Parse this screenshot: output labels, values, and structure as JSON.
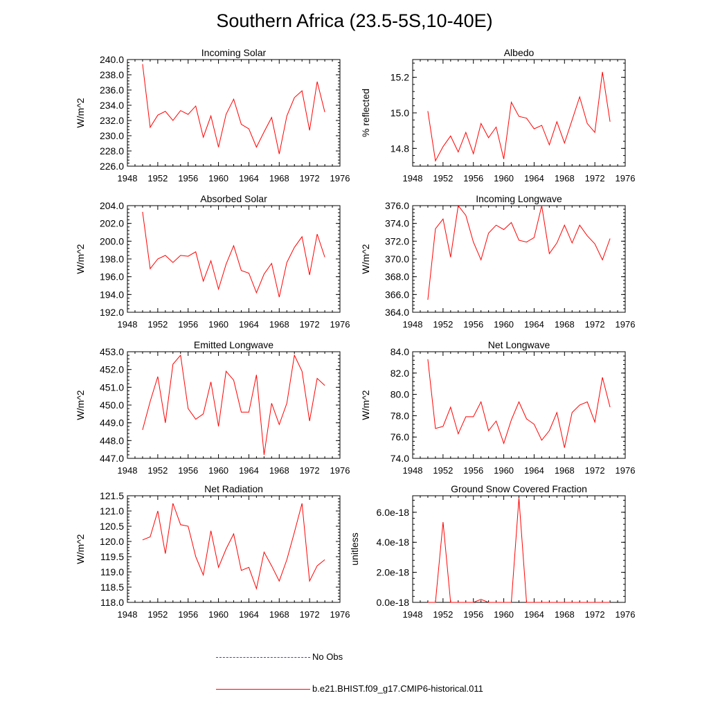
{
  "title": "Southern Africa (23.5-5S,10-40E)",
  "chart_data": [
    {
      "type": "line",
      "title": "Incoming Solar",
      "ylabel": "W/m^2",
      "xlim": [
        1948,
        1976
      ],
      "xticks": [
        1948,
        1952,
        1956,
        1960,
        1964,
        1968,
        1972,
        1976
      ],
      "ylim": [
        226.0,
        240.0
      ],
      "yticks": [
        226.0,
        228.0,
        230.0,
        232.0,
        234.0,
        236.0,
        238.0,
        240.0
      ],
      "ytick_labels": [
        "226.0",
        "228.0",
        "230.0",
        "232.0",
        "234.0",
        "236.0",
        "238.0",
        "240.0"
      ],
      "x": [
        1950,
        1951,
        1952,
        1953,
        1954,
        1955,
        1956,
        1957,
        1958,
        1959,
        1960,
        1961,
        1962,
        1963,
        1964,
        1965,
        1966,
        1967,
        1968,
        1969,
        1970,
        1971,
        1972,
        1973,
        1974
      ],
      "series": [
        {
          "values": [
            239.4,
            231.1,
            232.7,
            233.2,
            232.0,
            233.3,
            232.8,
            233.9,
            229.8,
            232.6,
            228.5,
            232.8,
            234.8,
            231.5,
            230.9,
            228.5,
            230.5,
            232.4,
            227.6,
            232.6,
            235.0,
            235.9,
            230.7,
            237.1,
            233.1
          ]
        }
      ]
    },
    {
      "type": "line",
      "title": "Albedo",
      "ylabel": "% reflected",
      "xlim": [
        1948,
        1976
      ],
      "xticks": [
        1948,
        1952,
        1956,
        1960,
        1964,
        1968,
        1972,
        1976
      ],
      "ylim": [
        14.7,
        15.3
      ],
      "yticks": [
        14.8,
        15.0,
        15.2
      ],
      "ytick_labels": [
        "14.8",
        "15.0",
        "15.2"
      ],
      "x": [
        1950,
        1951,
        1952,
        1953,
        1954,
        1955,
        1956,
        1957,
        1958,
        1959,
        1960,
        1961,
        1962,
        1963,
        1964,
        1965,
        1966,
        1967,
        1968,
        1969,
        1970,
        1971,
        1972,
        1973,
        1974
      ],
      "series": [
        {
          "values": [
            15.01,
            14.73,
            14.81,
            14.87,
            14.78,
            14.89,
            14.77,
            14.94,
            14.86,
            14.92,
            14.74,
            15.06,
            14.98,
            14.97,
            14.91,
            14.93,
            14.82,
            14.95,
            14.83,
            14.96,
            15.09,
            14.94,
            14.89,
            15.23,
            14.95
          ]
        }
      ]
    },
    {
      "type": "line",
      "title": "Absorbed Solar",
      "ylabel": "W/m^2",
      "xlim": [
        1948,
        1976
      ],
      "xticks": [
        1948,
        1952,
        1956,
        1960,
        1964,
        1968,
        1972,
        1976
      ],
      "ylim": [
        192.0,
        204.0
      ],
      "yticks": [
        192.0,
        194.0,
        196.0,
        198.0,
        200.0,
        202.0,
        204.0
      ],
      "ytick_labels": [
        "192.0",
        "194.0",
        "196.0",
        "198.0",
        "200.0",
        "202.0",
        "204.0"
      ],
      "x": [
        1950,
        1951,
        1952,
        1953,
        1954,
        1955,
        1956,
        1957,
        1958,
        1959,
        1960,
        1961,
        1962,
        1963,
        1964,
        1965,
        1966,
        1967,
        1968,
        1969,
        1970,
        1971,
        1972,
        1973,
        1974
      ],
      "series": [
        {
          "values": [
            203.3,
            196.9,
            198.0,
            198.4,
            197.6,
            198.4,
            198.3,
            198.8,
            195.5,
            197.8,
            194.6,
            197.4,
            199.5,
            196.7,
            196.4,
            194.2,
            196.3,
            197.5,
            193.7,
            197.6,
            199.3,
            200.5,
            196.2,
            200.8,
            198.2
          ]
        }
      ]
    },
    {
      "type": "line",
      "title": "Incoming Longwave",
      "ylabel": "W/m^2",
      "xlim": [
        1948,
        1976
      ],
      "xticks": [
        1948,
        1952,
        1956,
        1960,
        1964,
        1968,
        1972,
        1976
      ],
      "ylim": [
        364.0,
        376.0
      ],
      "yticks": [
        364.0,
        366.0,
        368.0,
        370.0,
        372.0,
        374.0,
        376.0
      ],
      "ytick_labels": [
        "364.0",
        "366.0",
        "368.0",
        "370.0",
        "372.0",
        "374.0",
        "376.0"
      ],
      "x": [
        1950,
        1951,
        1952,
        1953,
        1954,
        1955,
        1956,
        1957,
        1958,
        1959,
        1960,
        1961,
        1962,
        1963,
        1964,
        1965,
        1966,
        1967,
        1968,
        1969,
        1970,
        1971,
        1972,
        1973,
        1974
      ],
      "series": [
        {
          "values": [
            365.4,
            373.4,
            374.5,
            370.2,
            376.0,
            374.9,
            371.9,
            369.9,
            372.9,
            373.8,
            373.3,
            374.1,
            372.1,
            371.9,
            372.4,
            376.0,
            370.6,
            371.8,
            373.8,
            371.8,
            373.8,
            372.6,
            371.7,
            369.9,
            372.3
          ]
        }
      ]
    },
    {
      "type": "line",
      "title": "Emitted Longwave",
      "ylabel": "W/m^2",
      "xlim": [
        1948,
        1976
      ],
      "xticks": [
        1948,
        1952,
        1956,
        1960,
        1964,
        1968,
        1972,
        1976
      ],
      "ylim": [
        447.0,
        453.0
      ],
      "yticks": [
        447.0,
        448.0,
        449.0,
        450.0,
        451.0,
        452.0,
        453.0
      ],
      "ytick_labels": [
        "447.0",
        "448.0",
        "449.0",
        "450.0",
        "451.0",
        "452.0",
        "453.0"
      ],
      "x": [
        1950,
        1951,
        1952,
        1953,
        1954,
        1955,
        1956,
        1957,
        1958,
        1959,
        1960,
        1961,
        1962,
        1963,
        1964,
        1965,
        1966,
        1967,
        1968,
        1969,
        1970,
        1971,
        1972,
        1973,
        1974
      ],
      "series": [
        {
          "values": [
            448.6,
            450.2,
            451.6,
            449.0,
            452.3,
            452.8,
            449.8,
            449.2,
            449.5,
            451.3,
            448.8,
            451.9,
            451.4,
            449.6,
            449.6,
            451.7,
            447.2,
            450.1,
            448.9,
            450.1,
            452.8,
            451.9,
            449.1,
            451.5,
            451.1
          ]
        }
      ]
    },
    {
      "type": "line",
      "title": "Net Longwave",
      "ylabel": "W/m^2",
      "xlim": [
        1948,
        1976
      ],
      "xticks": [
        1948,
        1952,
        1956,
        1960,
        1964,
        1968,
        1972,
        1976
      ],
      "ylim": [
        74.0,
        84.0
      ],
      "yticks": [
        74.0,
        76.0,
        78.0,
        80.0,
        82.0,
        84.0
      ],
      "ytick_labels": [
        "74.0",
        "76.0",
        "78.0",
        "80.0",
        "82.0",
        "84.0"
      ],
      "x": [
        1950,
        1951,
        1952,
        1953,
        1954,
        1955,
        1956,
        1957,
        1958,
        1959,
        1960,
        1961,
        1962,
        1963,
        1964,
        1965,
        1966,
        1967,
        1968,
        1969,
        1970,
        1971,
        1972,
        1973,
        1974
      ],
      "series": [
        {
          "values": [
            83.3,
            76.8,
            77.0,
            78.8,
            76.3,
            77.9,
            77.9,
            79.3,
            76.6,
            77.5,
            75.4,
            77.6,
            79.3,
            77.7,
            77.2,
            75.7,
            76.6,
            78.3,
            75.0,
            78.3,
            79.0,
            79.3,
            77.4,
            81.6,
            78.8
          ]
        }
      ]
    },
    {
      "type": "line",
      "title": "Net Radiation",
      "ylabel": "W/m^2",
      "xlim": [
        1948,
        1976
      ],
      "xticks": [
        1948,
        1952,
        1956,
        1960,
        1964,
        1968,
        1972,
        1976
      ],
      "ylim": [
        118.0,
        121.5
      ],
      "yticks": [
        118.0,
        118.5,
        119.0,
        119.5,
        120.0,
        120.5,
        121.0,
        121.5
      ],
      "ytick_labels": [
        "118.0",
        "118.5",
        "119.0",
        "119.5",
        "120.0",
        "120.5",
        "121.0",
        "121.5"
      ],
      "x": [
        1950,
        1951,
        1952,
        1953,
        1954,
        1955,
        1956,
        1957,
        1958,
        1959,
        1960,
        1961,
        1962,
        1963,
        1964,
        1965,
        1966,
        1967,
        1968,
        1969,
        1970,
        1971,
        1972,
        1973,
        1974
      ],
      "series": [
        {
          "values": [
            120.05,
            120.15,
            121.0,
            119.6,
            121.25,
            120.55,
            120.5,
            119.5,
            118.9,
            120.35,
            119.15,
            119.75,
            120.25,
            119.05,
            119.15,
            118.45,
            119.65,
            119.2,
            118.7,
            119.4,
            120.3,
            121.25,
            118.7,
            119.2,
            119.4
          ]
        }
      ]
    },
    {
      "type": "line",
      "title": "Ground Snow Covered Fraction",
      "ylabel": "unitless",
      "xlim": [
        1948,
        1976
      ],
      "xticks": [
        1948,
        1952,
        1956,
        1960,
        1964,
        1968,
        1972,
        1976
      ],
      "ylim": [
        0,
        7.1e-18
      ],
      "yticks": [
        0,
        2e-18,
        4e-18,
        6e-18
      ],
      "ytick_labels": [
        "0.0e-18",
        "2.0e-18",
        "4.0e-18",
        "6.0e-18"
      ],
      "x": [
        1950,
        1951,
        1952,
        1953,
        1954,
        1955,
        1956,
        1957,
        1958,
        1959,
        1960,
        1961,
        1962,
        1963,
        1964,
        1965,
        1966,
        1967,
        1968,
        1969,
        1970,
        1971,
        1972,
        1973,
        1974
      ],
      "series": [
        {
          "values": [
            0,
            0,
            5.35e-18,
            0,
            0,
            0,
            0,
            2e-19,
            0,
            0,
            0,
            0,
            6.95e-18,
            0,
            0,
            0,
            0,
            0,
            0,
            0,
            0,
            0,
            0,
            0,
            0
          ]
        }
      ]
    }
  ],
  "legend": [
    {
      "label": "No Obs",
      "color": "#3c3cd8",
      "style": "dashed"
    },
    {
      "label": "b.e21.BHIST.f09_g17.CMIP6-historical.011",
      "color": "#ff0000",
      "style": "solid"
    }
  ],
  "colors": {
    "series": "#ff0000",
    "axis": "#000000"
  }
}
